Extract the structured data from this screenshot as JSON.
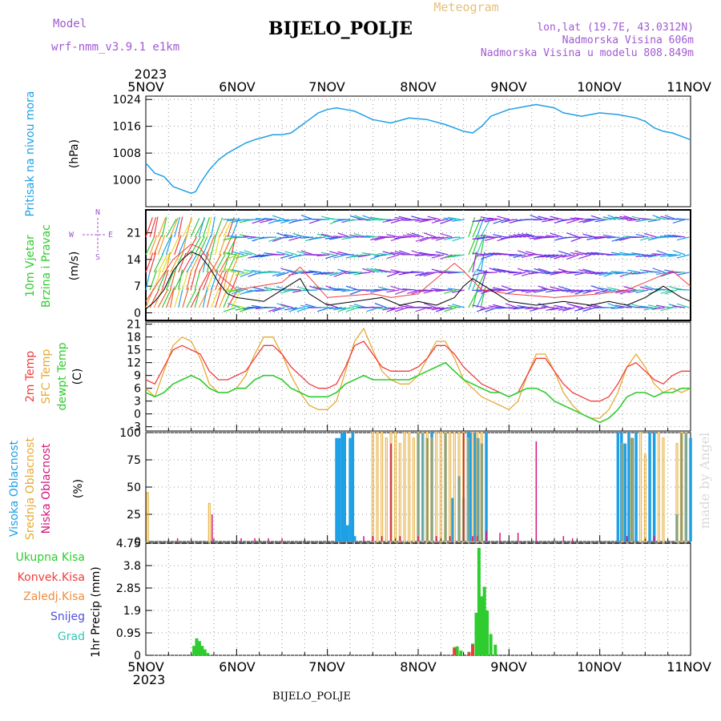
{
  "header": {
    "model_label": "Model",
    "model_name": "wrf-nmm_v3.9.1 e1km",
    "station": "BIJELO_POLJE",
    "product": "Meteogram",
    "lonlat": "lon,lat (19.7E, 43.0312N)",
    "elevation": "Nadmorska Visina 606m",
    "model_elevation": "Nadmorska Visina u modelu 808.849m",
    "year": "2023",
    "bottom_station": "BIJELO_POLJE",
    "watermark": "made by Angel"
  },
  "colors": {
    "pressure": "#1ea0e6",
    "temp2m": "#f03c3c",
    "sfc": "#e6aa32",
    "dew": "#2ecc2e",
    "high": "#1ea0e6",
    "mid": "#e6aa32",
    "low": "#d2147d",
    "precip": "#2ecc2e",
    "conv": "#f03c3c",
    "wind_label": "#2ecc2e",
    "model": "#a05ad2",
    "product": "#e6c078"
  },
  "chart_data": [
    {
      "type": "line",
      "panel": "pressure",
      "ylabel": [
        "Pritisak na nivou mora",
        "(hPa)"
      ],
      "x_ticks": [
        "5NOV",
        "6NOV",
        "7NOV",
        "8NOV",
        "9NOV",
        "10NOV",
        "11NOV"
      ],
      "ylim": [
        992,
        1025
      ],
      "yticks": [
        1000,
        1008,
        1016,
        1024
      ],
      "grid": true,
      "series": [
        {
          "x": [
            0,
            0.1,
            0.2,
            0.3,
            0.4,
            0.5,
            0.55,
            0.6,
            0.7,
            0.8,
            0.9,
            1.0,
            1.1,
            1.2,
            1.4,
            1.5,
            1.6,
            1.7,
            1.8,
            1.9,
            2.0,
            2.1,
            2.2,
            2.3,
            2.5,
            2.7,
            2.9,
            3.1,
            3.3,
            3.5,
            3.6,
            3.7,
            3.8,
            4.0,
            4.2,
            4.3,
            4.5,
            4.6,
            4.8,
            5.0,
            5.2,
            5.4,
            5.5,
            5.6,
            5.7,
            5.8,
            5.9,
            6.0
          ],
          "values": [
            1005,
            1002,
            1001,
            998,
            997,
            996,
            996.5,
            999,
            1003,
            1006,
            1008,
            1009.5,
            1011,
            1012,
            1013.5,
            1013.5,
            1014,
            1016,
            1018,
            1020,
            1021,
            1021.5,
            1021,
            1020.5,
            1018,
            1017,
            1018.5,
            1018,
            1016.5,
            1014.5,
            1014,
            1016,
            1019,
            1021,
            1022,
            1022.5,
            1021.5,
            1020,
            1019,
            1020,
            1019.5,
            1018.5,
            1017.5,
            1015.5,
            1014.5,
            1014,
            1013,
            1012
          ]
        }
      ]
    },
    {
      "type": "line",
      "panel": "wind",
      "ylabel": [
        "10m Vjetar",
        "Brzina i Pravac",
        "(m/s)"
      ],
      "compass": [
        "N",
        "E",
        "S",
        "W"
      ],
      "ylim": [
        -2,
        27
      ],
      "yticks": [
        0,
        7,
        14,
        21
      ],
      "grid": true,
      "series": [
        {
          "name": "wind speed",
          "x": [
            0,
            0.1,
            0.2,
            0.3,
            0.4,
            0.5,
            0.6,
            0.7,
            0.8,
            0.9,
            1.0,
            1.3,
            1.5,
            1.7,
            1.8,
            2.0,
            2.3,
            2.6,
            2.8,
            3.0,
            3.2,
            3.4,
            3.5,
            3.6,
            3.8,
            4.0,
            4.3,
            4.6,
            4.9,
            5.1,
            5.3,
            5.5,
            5.7,
            5.9,
            6.0
          ],
          "values": [
            1,
            3,
            6,
            11,
            14,
            16,
            15,
            12,
            8,
            5,
            4,
            3,
            6,
            9,
            5,
            2,
            3,
            4,
            2,
            3,
            2,
            4,
            7,
            9,
            6,
            3,
            2,
            3,
            2,
            3,
            2,
            4,
            7,
            4,
            3
          ]
        },
        {
          "name": "gust",
          "x": [
            0,
            0.3,
            0.5,
            0.6,
            0.8,
            1.0,
            1.5,
            1.7,
            2.0,
            2.5,
            2.7,
            3.0,
            3.4,
            3.5,
            3.7,
            4.0,
            4.5,
            5.0,
            5.3,
            5.6,
            5.8,
            6.0
          ],
          "values": [
            3,
            14,
            18,
            17,
            10,
            6,
            8,
            12,
            4,
            5,
            4,
            5,
            13,
            11,
            6,
            5,
            4,
            5,
            6,
            9,
            11,
            7
          ]
        }
      ]
    },
    {
      "type": "line",
      "panel": "temperature",
      "ylabel": [
        "2m Temp",
        "SFC Temp",
        "dewpt Temp",
        "(C)"
      ],
      "ylim": [
        -4,
        21.5
      ],
      "yticks": [
        -3,
        0,
        3,
        6,
        9,
        12,
        15,
        18,
        21
      ],
      "grid": true,
      "series": [
        {
          "name": "2m Temp",
          "x": [
            0,
            0.1,
            0.2,
            0.3,
            0.4,
            0.5,
            0.6,
            0.7,
            0.8,
            0.9,
            1.0,
            1.1,
            1.2,
            1.3,
            1.4,
            1.5,
            1.6,
            1.7,
            1.8,
            1.9,
            2.0,
            2.1,
            2.2,
            2.3,
            2.4,
            2.5,
            2.6,
            2.7,
            2.8,
            2.9,
            3.0,
            3.1,
            3.2,
            3.3,
            3.4,
            3.5,
            3.6,
            3.7,
            3.8,
            3.9,
            4.0,
            4.1,
            4.2,
            4.3,
            4.4,
            4.5,
            4.6,
            4.7,
            4.8,
            4.9,
            5.0,
            5.1,
            5.2,
            5.3,
            5.4,
            5.5,
            5.6,
            5.7,
            5.8,
            5.9,
            6.0
          ],
          "values": [
            8,
            7,
            11,
            15,
            16,
            15,
            14,
            10,
            8,
            8,
            9,
            10,
            13,
            16,
            16,
            14,
            11,
            9,
            7,
            6,
            6,
            7,
            11,
            16,
            17,
            14,
            11,
            10,
            10,
            10,
            11,
            13,
            16,
            16,
            14,
            11,
            9,
            7,
            6,
            5,
            4,
            5,
            9,
            13,
            13,
            10,
            7,
            5,
            4,
            3,
            3,
            4,
            7,
            11,
            12,
            10,
            8,
            7,
            9,
            10,
            10
          ]
        },
        {
          "name": "SFC Temp",
          "x": [
            0,
            0.1,
            0.2,
            0.3,
            0.4,
            0.5,
            0.6,
            0.7,
            0.8,
            0.9,
            1.0,
            1.1,
            1.2,
            1.3,
            1.4,
            1.5,
            1.6,
            1.7,
            1.8,
            1.9,
            2.0,
            2.1,
            2.2,
            2.3,
            2.4,
            2.5,
            2.6,
            2.7,
            2.8,
            2.9,
            3.0,
            3.1,
            3.2,
            3.3,
            3.4,
            3.5,
            3.6,
            3.7,
            3.8,
            3.9,
            4.0,
            4.1,
            4.2,
            4.3,
            4.4,
            4.5,
            4.6,
            4.7,
            4.8,
            4.9,
            5.0,
            5.1,
            5.2,
            5.3,
            5.4,
            5.5,
            5.6,
            5.7,
            5.8,
            5.9,
            6.0
          ],
          "values": [
            6,
            4,
            10,
            16,
            18,
            17,
            13,
            7,
            5,
            5,
            6,
            9,
            14,
            18,
            18,
            14,
            9,
            5,
            2,
            1,
            1,
            3,
            10,
            17,
            20,
            15,
            10,
            8,
            7,
            7,
            9,
            13,
            17,
            17,
            13,
            8,
            6,
            4,
            3,
            2,
            1,
            3,
            9,
            14,
            14,
            10,
            5,
            2,
            0,
            -1,
            -1,
            1,
            5,
            11,
            14,
            11,
            7,
            5,
            6,
            5,
            6
          ]
        },
        {
          "name": "dewpt Temp",
          "x": [
            0,
            0.1,
            0.2,
            0.3,
            0.4,
            0.5,
            0.6,
            0.7,
            0.8,
            0.9,
            1.0,
            1.1,
            1.2,
            1.3,
            1.4,
            1.5,
            1.6,
            1.7,
            1.8,
            1.9,
            2.0,
            2.1,
            2.2,
            2.3,
            2.4,
            2.5,
            2.6,
            2.7,
            2.8,
            2.9,
            3.0,
            3.1,
            3.2,
            3.3,
            3.4,
            3.5,
            3.6,
            3.7,
            3.8,
            3.9,
            4.0,
            4.1,
            4.2,
            4.3,
            4.4,
            4.5,
            4.6,
            4.7,
            4.8,
            4.9,
            5.0,
            5.1,
            5.2,
            5.3,
            5.4,
            5.5,
            5.6,
            5.7,
            5.8,
            5.9,
            6.0
          ],
          "values": [
            5,
            4,
            5,
            7,
            8,
            9,
            8,
            6,
            5,
            5,
            6,
            6,
            8,
            9,
            9,
            8,
            6,
            5,
            4,
            4,
            4,
            5,
            7,
            8,
            9,
            8,
            8,
            8,
            8,
            8,
            9,
            10,
            11,
            12,
            10,
            8,
            7,
            6,
            5,
            5,
            4,
            5,
            6,
            6,
            5,
            3,
            2,
            1,
            0,
            -1,
            -2,
            -1,
            1,
            4,
            5,
            5,
            4,
            5,
            5,
            6,
            6
          ]
        }
      ]
    },
    {
      "type": "bar",
      "panel": "cloud",
      "ylabel": [
        "Visoka Oblacnost",
        "Srednja Oblacnost",
        "Niska Oblacnost",
        "(%)"
      ],
      "ylim": [
        0,
        100
      ],
      "yticks": [
        0,
        25,
        50,
        75,
        100
      ],
      "grid": true,
      "series": [
        {
          "name": "Visoka Oblacnost",
          "x": [
            2.1,
            2.13,
            2.16,
            2.19,
            2.22,
            2.25,
            2.28,
            2.3,
            3.0,
            3.05,
            3.1,
            3.15,
            3.3,
            3.38,
            3.45,
            3.5,
            3.55,
            3.58,
            3.62,
            3.66,
            3.7,
            3.75,
            5.2,
            5.24,
            5.28,
            5.32,
            5.36,
            5.4,
            5.55,
            5.6,
            5.85,
            5.9,
            5.95,
            6.0
          ],
          "values": [
            95,
            95,
            100,
            100,
            15,
            95,
            100,
            5,
            100,
            100,
            95,
            100,
            100,
            40,
            60,
            40,
            100,
            100,
            100,
            95,
            90,
            100,
            100,
            100,
            90,
            100,
            95,
            100,
            100,
            100,
            25,
            100,
            100,
            95
          ]
        },
        {
          "name": "Srednja Oblacnost",
          "x": [
            0.02,
            0.7,
            2.5,
            2.55,
            2.6,
            2.65,
            2.7,
            2.75,
            2.8,
            2.85,
            2.9,
            2.95,
            3.0,
            3.05,
            3.1,
            3.15,
            3.2,
            3.25,
            3.3,
            3.35,
            3.4,
            3.45,
            3.5,
            3.55,
            3.6,
            3.65,
            3.7,
            5.25,
            5.35,
            5.45,
            5.5,
            5.65,
            5.7,
            5.85,
            5.9,
            5.95
          ],
          "values": [
            45,
            35,
            100,
            100,
            100,
            95,
            100,
            100,
            90,
            100,
            100,
            95,
            100,
            100,
            100,
            95,
            100,
            100,
            100,
            100,
            100,
            100,
            100,
            95,
            100,
            100,
            100,
            90,
            95,
            100,
            80,
            100,
            95,
            90,
            100,
            100
          ]
        },
        {
          "name": "Niska Oblacnost",
          "x": [
            0.35,
            0.73,
            1.05,
            1.2,
            1.35,
            1.5,
            2.4,
            2.5,
            2.6,
            2.7,
            2.8,
            3.0,
            3.2,
            3.35,
            3.5,
            3.6,
            3.65,
            3.75,
            3.9,
            4.1,
            4.3,
            4.6,
            4.7,
            5.3,
            5.6
          ],
          "values": [
            3,
            25,
            3,
            3,
            3,
            3,
            5,
            5,
            5,
            90,
            5,
            5,
            5,
            5,
            100,
            5,
            5,
            10,
            8,
            8,
            92,
            5,
            3,
            5,
            5
          ]
        }
      ]
    },
    {
      "type": "bar",
      "panel": "precipitation",
      "ylabel": [
        "1hr Precip (mm)"
      ],
      "legend": [
        "Ukupna Kisa",
        "Konvek.Kisa",
        "Zaledj.Kisa",
        "Snijeg",
        "Grad"
      ],
      "ylim": [
        0,
        4.75
      ],
      "yticks": [
        0,
        0.95,
        1.9,
        2.85,
        3.8,
        4.75
      ],
      "grid": true,
      "series": [
        {
          "name": "Ukupna Kisa",
          "x": [
            0.53,
            0.56,
            0.59,
            0.62,
            0.65,
            0.68,
            3.4,
            3.43,
            3.47,
            3.56,
            3.6,
            3.64,
            3.67,
            3.7,
            3.73,
            3.76,
            3.8,
            3.85
          ],
          "values": [
            0.4,
            0.72,
            0.6,
            0.4,
            0.25,
            0.1,
            0.35,
            0.38,
            0.2,
            0.15,
            0.5,
            1.8,
            4.55,
            2.5,
            2.9,
            1.9,
            0.9,
            0.45
          ]
        },
        {
          "name": "Konvek.Kisa",
          "x": [
            3.4,
            3.56,
            3.6
          ],
          "values": [
            0.3,
            0.12,
            0.45
          ]
        }
      ]
    }
  ]
}
